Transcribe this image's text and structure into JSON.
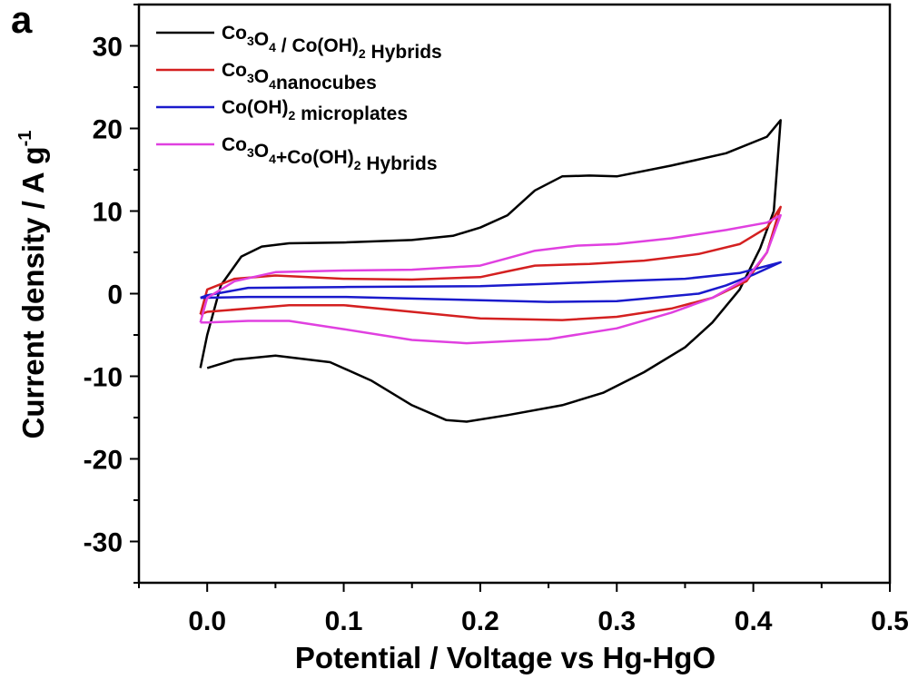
{
  "chart_data": {
    "type": "line",
    "panel_label": "a",
    "xlabel": "Potential / Voltage vs Hg-HgO",
    "ylabel_main": "Current density / A g",
    "ylabel_sup": "-1",
    "xlim": [
      -0.05,
      0.5
    ],
    "ylim": [
      -35,
      35
    ],
    "xticks": [
      "0.0",
      "0.1",
      "0.2",
      "0.3",
      "0.4",
      "0.5"
    ],
    "yticks": [
      "30",
      "20",
      "10",
      "0",
      "-10",
      "-20",
      "-30"
    ],
    "legend": {
      "placement": "top-left",
      "entries": [
        {
          "parts": [
            {
              "t": "Co"
            },
            {
              "t": "3",
              "sub": true
            },
            {
              "t": "O"
            },
            {
              "t": "4",
              "sub": true
            },
            {
              "t": " / Co(OH)"
            },
            {
              "t": "2",
              "sub": true
            },
            {
              "t": " Hybrids"
            }
          ]
        },
        {
          "parts": [
            {
              "t": "Co"
            },
            {
              "t": "3",
              "sub": true
            },
            {
              "t": "O"
            },
            {
              "t": "4",
              "sub": true
            },
            {
              "t": "nanocubes"
            }
          ]
        },
        {
          "parts": [
            {
              "t": "Co(OH)"
            },
            {
              "t": "2",
              "sub": true
            },
            {
              "t": " microplates"
            }
          ]
        },
        {
          "parts": [
            {
              "t": "Co"
            },
            {
              "t": "3",
              "sub": true
            },
            {
              "t": "O"
            },
            {
              "t": "4",
              "sub": true
            },
            {
              "t": "+Co(OH)"
            },
            {
              "t": "2",
              "sub": true
            },
            {
              "t": " Hybrids"
            }
          ]
        }
      ]
    },
    "series": [
      {
        "color": "#000000",
        "points": [
          [
            -0.005,
            -9
          ],
          [
            0.0,
            -5
          ],
          [
            0.01,
            1
          ],
          [
            0.025,
            4.5
          ],
          [
            0.04,
            5.7
          ],
          [
            0.06,
            6.1
          ],
          [
            0.1,
            6.2
          ],
          [
            0.15,
            6.5
          ],
          [
            0.18,
            7.0
          ],
          [
            0.2,
            8.0
          ],
          [
            0.22,
            9.5
          ],
          [
            0.24,
            12.5
          ],
          [
            0.26,
            14.2
          ],
          [
            0.28,
            14.3
          ],
          [
            0.3,
            14.2
          ],
          [
            0.34,
            15.5
          ],
          [
            0.38,
            17.0
          ],
          [
            0.41,
            19.0
          ],
          [
            0.42,
            21.0
          ],
          [
            0.415,
            10.0
          ],
          [
            0.405,
            5.5
          ],
          [
            0.39,
            0.5
          ],
          [
            0.37,
            -3.5
          ],
          [
            0.35,
            -6.5
          ],
          [
            0.32,
            -9.5
          ],
          [
            0.29,
            -12.0
          ],
          [
            0.26,
            -13.5
          ],
          [
            0.22,
            -14.7
          ],
          [
            0.19,
            -15.5
          ],
          [
            0.175,
            -15.3
          ],
          [
            0.15,
            -13.5
          ],
          [
            0.12,
            -10.5
          ],
          [
            0.09,
            -8.3
          ],
          [
            0.05,
            -7.5
          ],
          [
            0.02,
            -8.0
          ],
          [
            0.0,
            -9.0
          ]
        ]
      },
      {
        "color": "#d42020",
        "points": [
          [
            -0.005,
            -2.5
          ],
          [
            0.0,
            0.5
          ],
          [
            0.02,
            1.8
          ],
          [
            0.05,
            2.2
          ],
          [
            0.1,
            1.8
          ],
          [
            0.15,
            1.7
          ],
          [
            0.2,
            2.0
          ],
          [
            0.22,
            2.7
          ],
          [
            0.24,
            3.4
          ],
          [
            0.28,
            3.6
          ],
          [
            0.32,
            4.0
          ],
          [
            0.36,
            4.8
          ],
          [
            0.39,
            6.0
          ],
          [
            0.41,
            8.0
          ],
          [
            0.42,
            10.5
          ],
          [
            0.41,
            5.0
          ],
          [
            0.395,
            1.5
          ],
          [
            0.37,
            -0.5
          ],
          [
            0.34,
            -1.8
          ],
          [
            0.3,
            -2.8
          ],
          [
            0.26,
            -3.2
          ],
          [
            0.2,
            -3.0
          ],
          [
            0.15,
            -2.2
          ],
          [
            0.1,
            -1.4
          ],
          [
            0.06,
            -1.4
          ],
          [
            0.03,
            -1.8
          ],
          [
            0.0,
            -2.2
          ],
          [
            -0.005,
            -2.5
          ]
        ]
      },
      {
        "color": "#1a1acc",
        "points": [
          [
            -0.005,
            -0.5
          ],
          [
            0.0,
            -0.2
          ],
          [
            0.03,
            0.7
          ],
          [
            0.1,
            0.8
          ],
          [
            0.2,
            0.9
          ],
          [
            0.25,
            1.2
          ],
          [
            0.3,
            1.5
          ],
          [
            0.35,
            1.8
          ],
          [
            0.39,
            2.5
          ],
          [
            0.42,
            3.8
          ],
          [
            0.4,
            2.3
          ],
          [
            0.38,
            1.0
          ],
          [
            0.36,
            0.0
          ],
          [
            0.3,
            -0.9
          ],
          [
            0.25,
            -1.0
          ],
          [
            0.2,
            -0.8
          ],
          [
            0.1,
            -0.4
          ],
          [
            0.03,
            -0.4
          ],
          [
            -0.005,
            -0.5
          ]
        ]
      },
      {
        "color": "#e040e0",
        "points": [
          [
            -0.005,
            -3.5
          ],
          [
            0.0,
            -0.5
          ],
          [
            0.02,
            1.5
          ],
          [
            0.05,
            2.6
          ],
          [
            0.1,
            2.8
          ],
          [
            0.15,
            2.9
          ],
          [
            0.2,
            3.4
          ],
          [
            0.22,
            4.3
          ],
          [
            0.24,
            5.2
          ],
          [
            0.27,
            5.8
          ],
          [
            0.3,
            6.0
          ],
          [
            0.34,
            6.7
          ],
          [
            0.38,
            7.7
          ],
          [
            0.41,
            8.6
          ],
          [
            0.42,
            9.5
          ],
          [
            0.41,
            5.0
          ],
          [
            0.395,
            1.8
          ],
          [
            0.37,
            -0.5
          ],
          [
            0.34,
            -2.3
          ],
          [
            0.3,
            -4.2
          ],
          [
            0.25,
            -5.5
          ],
          [
            0.19,
            -6.0
          ],
          [
            0.15,
            -5.6
          ],
          [
            0.1,
            -4.3
          ],
          [
            0.06,
            -3.3
          ],
          [
            0.03,
            -3.3
          ],
          [
            0.0,
            -3.5
          ],
          [
            -0.005,
            -3.5
          ]
        ]
      }
    ]
  }
}
